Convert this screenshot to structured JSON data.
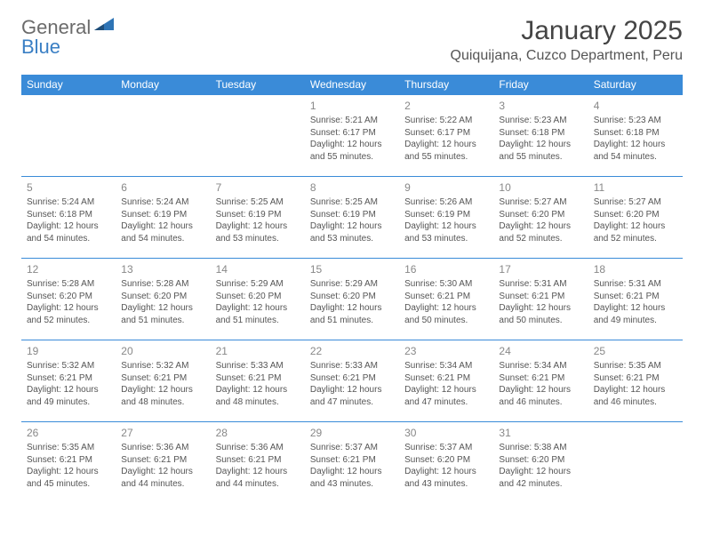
{
  "logo": {
    "word1": "General",
    "word2": "Blue"
  },
  "title": "January 2025",
  "location": "Quiquijana, Cuzco Department, Peru",
  "colors": {
    "header_bg": "#3a8bd8",
    "header_fg": "#ffffff",
    "rule": "#3a8bd8",
    "daynum": "#888888",
    "body_text": "#555555",
    "logo_gray": "#6b6b6b",
    "logo_blue": "#3a7fc4"
  },
  "weekdays": [
    "Sunday",
    "Monday",
    "Tuesday",
    "Wednesday",
    "Thursday",
    "Friday",
    "Saturday"
  ],
  "weeks": [
    [
      null,
      null,
      null,
      {
        "n": "1",
        "sr": "5:21 AM",
        "ss": "6:17 PM",
        "dl": "12 hours and 55 minutes."
      },
      {
        "n": "2",
        "sr": "5:22 AM",
        "ss": "6:17 PM",
        "dl": "12 hours and 55 minutes."
      },
      {
        "n": "3",
        "sr": "5:23 AM",
        "ss": "6:18 PM",
        "dl": "12 hours and 55 minutes."
      },
      {
        "n": "4",
        "sr": "5:23 AM",
        "ss": "6:18 PM",
        "dl": "12 hours and 54 minutes."
      }
    ],
    [
      {
        "n": "5",
        "sr": "5:24 AM",
        "ss": "6:18 PM",
        "dl": "12 hours and 54 minutes."
      },
      {
        "n": "6",
        "sr": "5:24 AM",
        "ss": "6:19 PM",
        "dl": "12 hours and 54 minutes."
      },
      {
        "n": "7",
        "sr": "5:25 AM",
        "ss": "6:19 PM",
        "dl": "12 hours and 53 minutes."
      },
      {
        "n": "8",
        "sr": "5:25 AM",
        "ss": "6:19 PM",
        "dl": "12 hours and 53 minutes."
      },
      {
        "n": "9",
        "sr": "5:26 AM",
        "ss": "6:19 PM",
        "dl": "12 hours and 53 minutes."
      },
      {
        "n": "10",
        "sr": "5:27 AM",
        "ss": "6:20 PM",
        "dl": "12 hours and 52 minutes."
      },
      {
        "n": "11",
        "sr": "5:27 AM",
        "ss": "6:20 PM",
        "dl": "12 hours and 52 minutes."
      }
    ],
    [
      {
        "n": "12",
        "sr": "5:28 AM",
        "ss": "6:20 PM",
        "dl": "12 hours and 52 minutes."
      },
      {
        "n": "13",
        "sr": "5:28 AM",
        "ss": "6:20 PM",
        "dl": "12 hours and 51 minutes."
      },
      {
        "n": "14",
        "sr": "5:29 AM",
        "ss": "6:20 PM",
        "dl": "12 hours and 51 minutes."
      },
      {
        "n": "15",
        "sr": "5:29 AM",
        "ss": "6:20 PM",
        "dl": "12 hours and 51 minutes."
      },
      {
        "n": "16",
        "sr": "5:30 AM",
        "ss": "6:21 PM",
        "dl": "12 hours and 50 minutes."
      },
      {
        "n": "17",
        "sr": "5:31 AM",
        "ss": "6:21 PM",
        "dl": "12 hours and 50 minutes."
      },
      {
        "n": "18",
        "sr": "5:31 AM",
        "ss": "6:21 PM",
        "dl": "12 hours and 49 minutes."
      }
    ],
    [
      {
        "n": "19",
        "sr": "5:32 AM",
        "ss": "6:21 PM",
        "dl": "12 hours and 49 minutes."
      },
      {
        "n": "20",
        "sr": "5:32 AM",
        "ss": "6:21 PM",
        "dl": "12 hours and 48 minutes."
      },
      {
        "n": "21",
        "sr": "5:33 AM",
        "ss": "6:21 PM",
        "dl": "12 hours and 48 minutes."
      },
      {
        "n": "22",
        "sr": "5:33 AM",
        "ss": "6:21 PM",
        "dl": "12 hours and 47 minutes."
      },
      {
        "n": "23",
        "sr": "5:34 AM",
        "ss": "6:21 PM",
        "dl": "12 hours and 47 minutes."
      },
      {
        "n": "24",
        "sr": "5:34 AM",
        "ss": "6:21 PM",
        "dl": "12 hours and 46 minutes."
      },
      {
        "n": "25",
        "sr": "5:35 AM",
        "ss": "6:21 PM",
        "dl": "12 hours and 46 minutes."
      }
    ],
    [
      {
        "n": "26",
        "sr": "5:35 AM",
        "ss": "6:21 PM",
        "dl": "12 hours and 45 minutes."
      },
      {
        "n": "27",
        "sr": "5:36 AM",
        "ss": "6:21 PM",
        "dl": "12 hours and 44 minutes."
      },
      {
        "n": "28",
        "sr": "5:36 AM",
        "ss": "6:21 PM",
        "dl": "12 hours and 44 minutes."
      },
      {
        "n": "29",
        "sr": "5:37 AM",
        "ss": "6:21 PM",
        "dl": "12 hours and 43 minutes."
      },
      {
        "n": "30",
        "sr": "5:37 AM",
        "ss": "6:20 PM",
        "dl": "12 hours and 43 minutes."
      },
      {
        "n": "31",
        "sr": "5:38 AM",
        "ss": "6:20 PM",
        "dl": "12 hours and 42 minutes."
      },
      null
    ]
  ],
  "labels": {
    "sunrise": "Sunrise:",
    "sunset": "Sunset:",
    "daylight": "Daylight:"
  }
}
